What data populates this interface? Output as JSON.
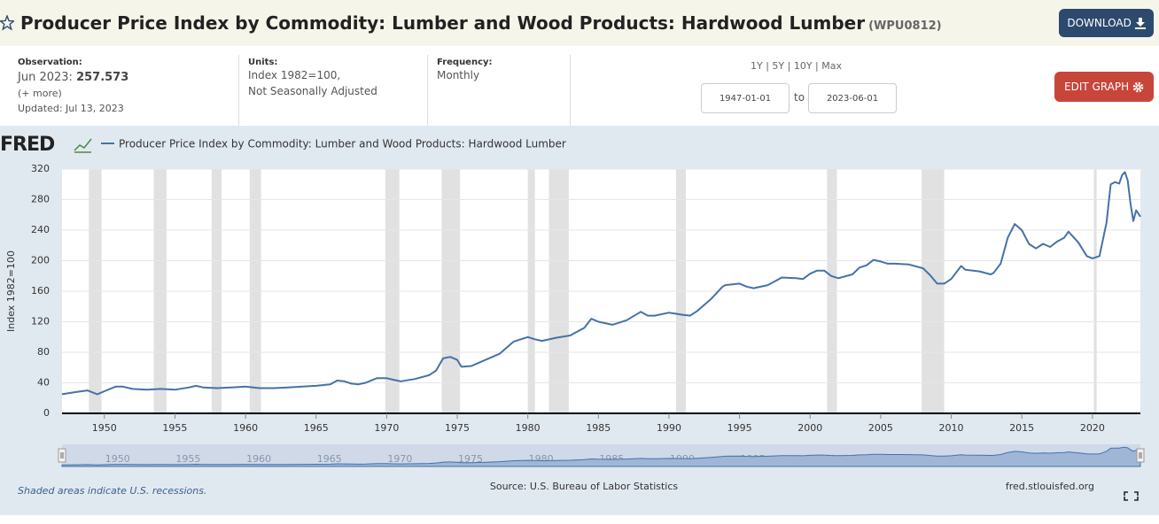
{
  "header": {
    "title": "Producer Price Index by Commodity: Lumber and Wood Products: Hardwood Lumber",
    "series_id": "(WPU0812)",
    "download": "DOWNLOAD"
  },
  "info": {
    "observation_label": "Observation:",
    "observation_date": "Jun 2023:",
    "observation_value": 257.573,
    "more": "(+ more)",
    "updated": "Updated: Jul 13, 2023",
    "units_label": "Units:",
    "units": [
      "Index 1982=100,",
      "Not Seasonally Adjusted"
    ],
    "frequency_label": "Frequency:",
    "frequency": "Monthly",
    "ranges": [
      "1Y",
      "5Y",
      "10Y",
      "Max"
    ],
    "start_date": "1947-01-01",
    "to": "to",
    "end_date": "2023-06-01",
    "edit": "EDIT GRAPH"
  },
  "chart_data": {
    "type": "line",
    "logo": "FRED",
    "ylabel": "Index 1982=100",
    "x": [
      1947.0,
      1948.0,
      1948.8,
      1949.5,
      1950.0,
      1950.8,
      1951.3,
      1952.0,
      1953.0,
      1954.0,
      1955.0,
      1956.0,
      1956.5,
      1957.0,
      1958.0,
      1959.0,
      1960.0,
      1961.0,
      1962.0,
      1963.0,
      1964.0,
      1965.0,
      1966.0,
      1966.5,
      1967.0,
      1967.5,
      1968.0,
      1968.5,
      1969.3,
      1970.0,
      1970.5,
      1971.0,
      1972.0,
      1973.0,
      1973.5,
      1974.0,
      1974.5,
      1975.0,
      1975.3,
      1976.0,
      1976.5,
      1977.0,
      1978.0,
      1979.0,
      1980.0,
      1980.5,
      1981.0,
      1982.0,
      1983.0,
      1984.0,
      1984.5,
      1985.0,
      1986.0,
      1987.0,
      1988.0,
      1988.5,
      1989.0,
      1990.0,
      1991.0,
      1991.5,
      1992.0,
      1993.0,
      1993.8,
      1994.0,
      1995.0,
      1995.5,
      1996.0,
      1997.0,
      1998.0,
      1999.0,
      1999.5,
      2000.0,
      2000.5,
      2001.0,
      2001.5,
      2002.0,
      2003.0,
      2003.5,
      2004.0,
      2004.5,
      2005.0,
      2005.5,
      2006.0,
      2007.0,
      2008.0,
      2008.5,
      2009.0,
      2009.5,
      2010.0,
      2010.7,
      2011.0,
      2012.0,
      2012.8,
      2013.0,
      2013.5,
      2014.0,
      2014.5,
      2015.0,
      2015.5,
      2016.0,
      2016.5,
      2017.0,
      2017.5,
      2018.0,
      2018.3,
      2018.7,
      2019.0,
      2019.6,
      2020.0,
      2020.5,
      2021.0,
      2021.3,
      2021.6,
      2021.9,
      2022.1,
      2022.3,
      2022.5,
      2022.7,
      2022.9,
      2023.1,
      2023.4
    ],
    "series": [
      {
        "name": "Producer Price Index by Commodity: Lumber and Wood Products: Hardwood Lumber",
        "color": "#4572a7",
        "values": [
          25,
          28,
          30,
          25,
          29,
          35,
          35,
          32,
          31,
          32,
          31,
          34,
          36,
          34,
          33,
          34,
          35,
          33,
          33,
          34,
          35,
          36,
          38,
          43,
          42,
          39,
          38,
          40,
          46,
          46,
          44,
          42,
          45,
          50,
          56,
          72,
          74,
          70,
          61,
          62,
          66,
          70,
          78,
          94,
          100,
          97,
          95,
          99,
          102,
          112,
          124,
          120,
          116,
          122,
          133,
          128,
          128,
          132,
          129,
          128,
          134,
          150,
          166,
          168,
          170,
          166,
          164,
          168,
          178,
          177,
          176,
          183,
          187,
          187,
          180,
          177,
          182,
          191,
          194,
          201,
          199,
          196,
          196,
          195,
          190,
          181,
          170,
          170,
          176,
          193,
          188,
          186,
          182,
          184,
          196,
          230,
          248,
          240,
          222,
          216,
          222,
          218,
          225,
          230,
          238,
          230,
          224,
          206,
          203,
          206,
          250,
          300,
          303,
          301,
          312,
          316,
          305,
          275,
          252,
          266,
          257.573
        ]
      }
    ],
    "xlim": [
      1947,
      2023.4
    ],
    "ylim": [
      0,
      320
    ],
    "xticks": [
      1950,
      1955,
      1960,
      1965,
      1970,
      1975,
      1980,
      1985,
      1990,
      1995,
      2000,
      2005,
      2010,
      2015,
      2020
    ],
    "yticks": [
      0,
      40,
      80,
      120,
      160,
      200,
      240,
      280,
      320
    ],
    "grid": true,
    "recessions": [
      [
        1948.9,
        1949.8
      ],
      [
        1953.5,
        1954.4
      ],
      [
        1957.6,
        1958.3
      ],
      [
        1960.3,
        1961.1
      ],
      [
        1969.9,
        1970.9
      ],
      [
        1973.9,
        1975.2
      ],
      [
        1980.0,
        1980.5
      ],
      [
        1981.5,
        1982.9
      ],
      [
        1990.5,
        1991.2
      ],
      [
        2001.2,
        2001.9
      ],
      [
        2007.9,
        2009.5
      ],
      [
        2020.1,
        2020.3
      ]
    ],
    "note": "Shaded areas indicate U.S. recessions.",
    "source": "Source: U.S. Bureau of Labor Statistics",
    "site": "fred.stlouisfed.org"
  }
}
